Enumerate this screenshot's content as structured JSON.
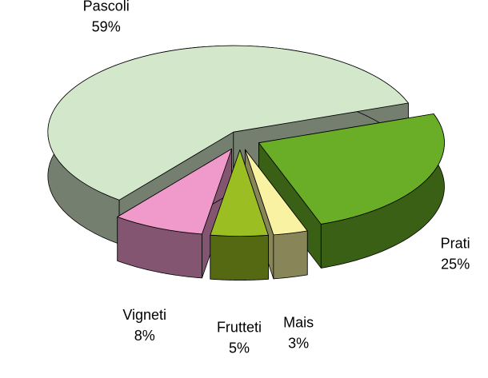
{
  "chart_data": {
    "type": "pie",
    "categories": [
      "Pascoli",
      "Prati",
      "Mais",
      "Frutteti",
      "Vigneti"
    ],
    "values": [
      59,
      25,
      3,
      5,
      8
    ],
    "value_labels": [
      "59%",
      "25%",
      "3%",
      "5%",
      "8%"
    ],
    "colors": [
      "#d3e7cb",
      "#6aae28",
      "#f8f2a2",
      "#9bbf22",
      "#ef9acb"
    ]
  }
}
